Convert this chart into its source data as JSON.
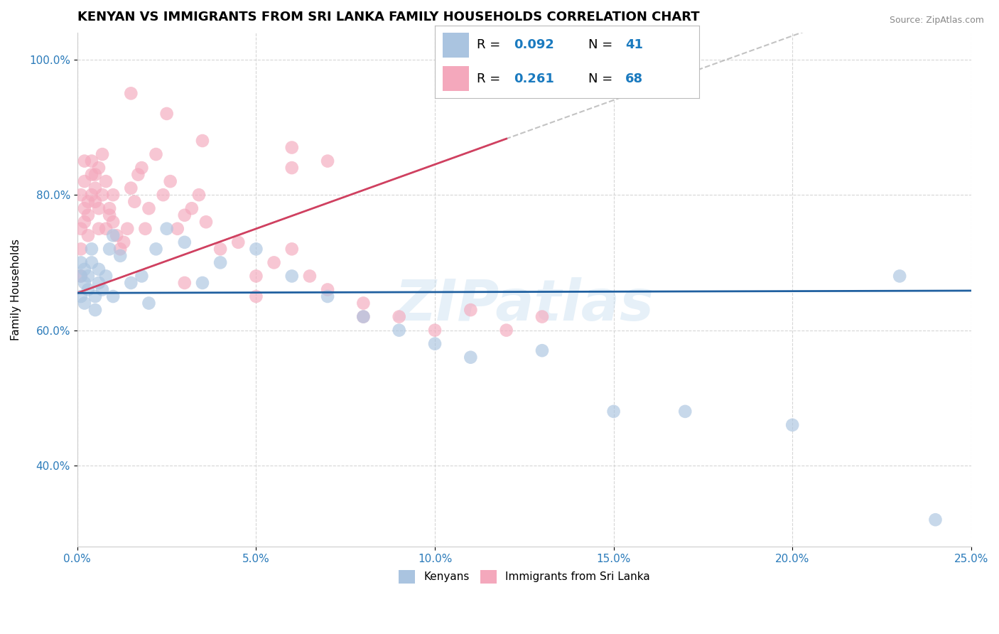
{
  "title": "KENYAN VS IMMIGRANTS FROM SRI LANKA FAMILY HOUSEHOLDS CORRELATION CHART",
  "source": "Source: ZipAtlas.com",
  "ylabel": "Family Households",
  "xmin": 0.0,
  "xmax": 0.25,
  "ymin": 0.28,
  "ymax": 1.04,
  "xticks": [
    0.0,
    0.05,
    0.1,
    0.15,
    0.2,
    0.25
  ],
  "yticks": [
    0.4,
    0.6,
    0.8,
    1.0
  ],
  "legend_r_color": "#1a7abf",
  "blue_color": "#aac4e0",
  "pink_color": "#f4a8bc",
  "blue_line_color": "#2060a0",
  "pink_line_color": "#d04060",
  "kenyan_x": [
    0.001,
    0.001,
    0.001,
    0.002,
    0.002,
    0.002,
    0.003,
    0.003,
    0.004,
    0.004,
    0.005,
    0.005,
    0.006,
    0.006,
    0.007,
    0.008,
    0.009,
    0.01,
    0.01,
    0.012,
    0.015,
    0.018,
    0.02,
    0.022,
    0.025,
    0.03,
    0.035,
    0.04,
    0.05,
    0.06,
    0.07,
    0.08,
    0.09,
    0.1,
    0.11,
    0.13,
    0.15,
    0.17,
    0.2,
    0.23,
    0.24
  ],
  "kenyan_y": [
    0.68,
    0.7,
    0.65,
    0.67,
    0.69,
    0.64,
    0.68,
    0.66,
    0.7,
    0.72,
    0.65,
    0.63,
    0.67,
    0.69,
    0.66,
    0.68,
    0.72,
    0.74,
    0.65,
    0.71,
    0.67,
    0.68,
    0.64,
    0.72,
    0.75,
    0.73,
    0.67,
    0.7,
    0.72,
    0.68,
    0.65,
    0.62,
    0.6,
    0.58,
    0.56,
    0.57,
    0.48,
    0.48,
    0.46,
    0.68,
    0.32
  ],
  "srilanka_x": [
    0.001,
    0.001,
    0.001,
    0.001,
    0.002,
    0.002,
    0.002,
    0.002,
    0.003,
    0.003,
    0.003,
    0.004,
    0.004,
    0.004,
    0.005,
    0.005,
    0.005,
    0.006,
    0.006,
    0.006,
    0.007,
    0.007,
    0.008,
    0.008,
    0.009,
    0.009,
    0.01,
    0.01,
    0.011,
    0.012,
    0.013,
    0.014,
    0.015,
    0.016,
    0.017,
    0.018,
    0.019,
    0.02,
    0.022,
    0.024,
    0.026,
    0.028,
    0.03,
    0.032,
    0.034,
    0.036,
    0.04,
    0.045,
    0.05,
    0.055,
    0.06,
    0.065,
    0.07,
    0.08,
    0.09,
    0.1,
    0.11,
    0.13,
    0.015,
    0.025,
    0.035,
    0.06,
    0.06,
    0.07,
    0.08,
    0.12,
    0.03,
    0.05
  ],
  "srilanka_y": [
    0.72,
    0.68,
    0.75,
    0.8,
    0.85,
    0.78,
    0.82,
    0.76,
    0.74,
    0.79,
    0.77,
    0.8,
    0.83,
    0.85,
    0.81,
    0.79,
    0.83,
    0.84,
    0.75,
    0.78,
    0.86,
    0.8,
    0.82,
    0.75,
    0.77,
    0.78,
    0.8,
    0.76,
    0.74,
    0.72,
    0.73,
    0.75,
    0.81,
    0.79,
    0.83,
    0.84,
    0.75,
    0.78,
    0.86,
    0.8,
    0.82,
    0.75,
    0.77,
    0.78,
    0.8,
    0.76,
    0.72,
    0.73,
    0.68,
    0.7,
    0.72,
    0.68,
    0.66,
    0.64,
    0.62,
    0.6,
    0.63,
    0.62,
    0.95,
    0.92,
    0.88,
    0.87,
    0.84,
    0.85,
    0.62,
    0.6,
    0.67,
    0.65
  ],
  "watermark": "ZIPatlas",
  "background_color": "#ffffff",
  "grid_color": "#cccccc",
  "title_fontsize": 13,
  "axis_label_fontsize": 11,
  "tick_fontsize": 11,
  "legend_fontsize": 13
}
